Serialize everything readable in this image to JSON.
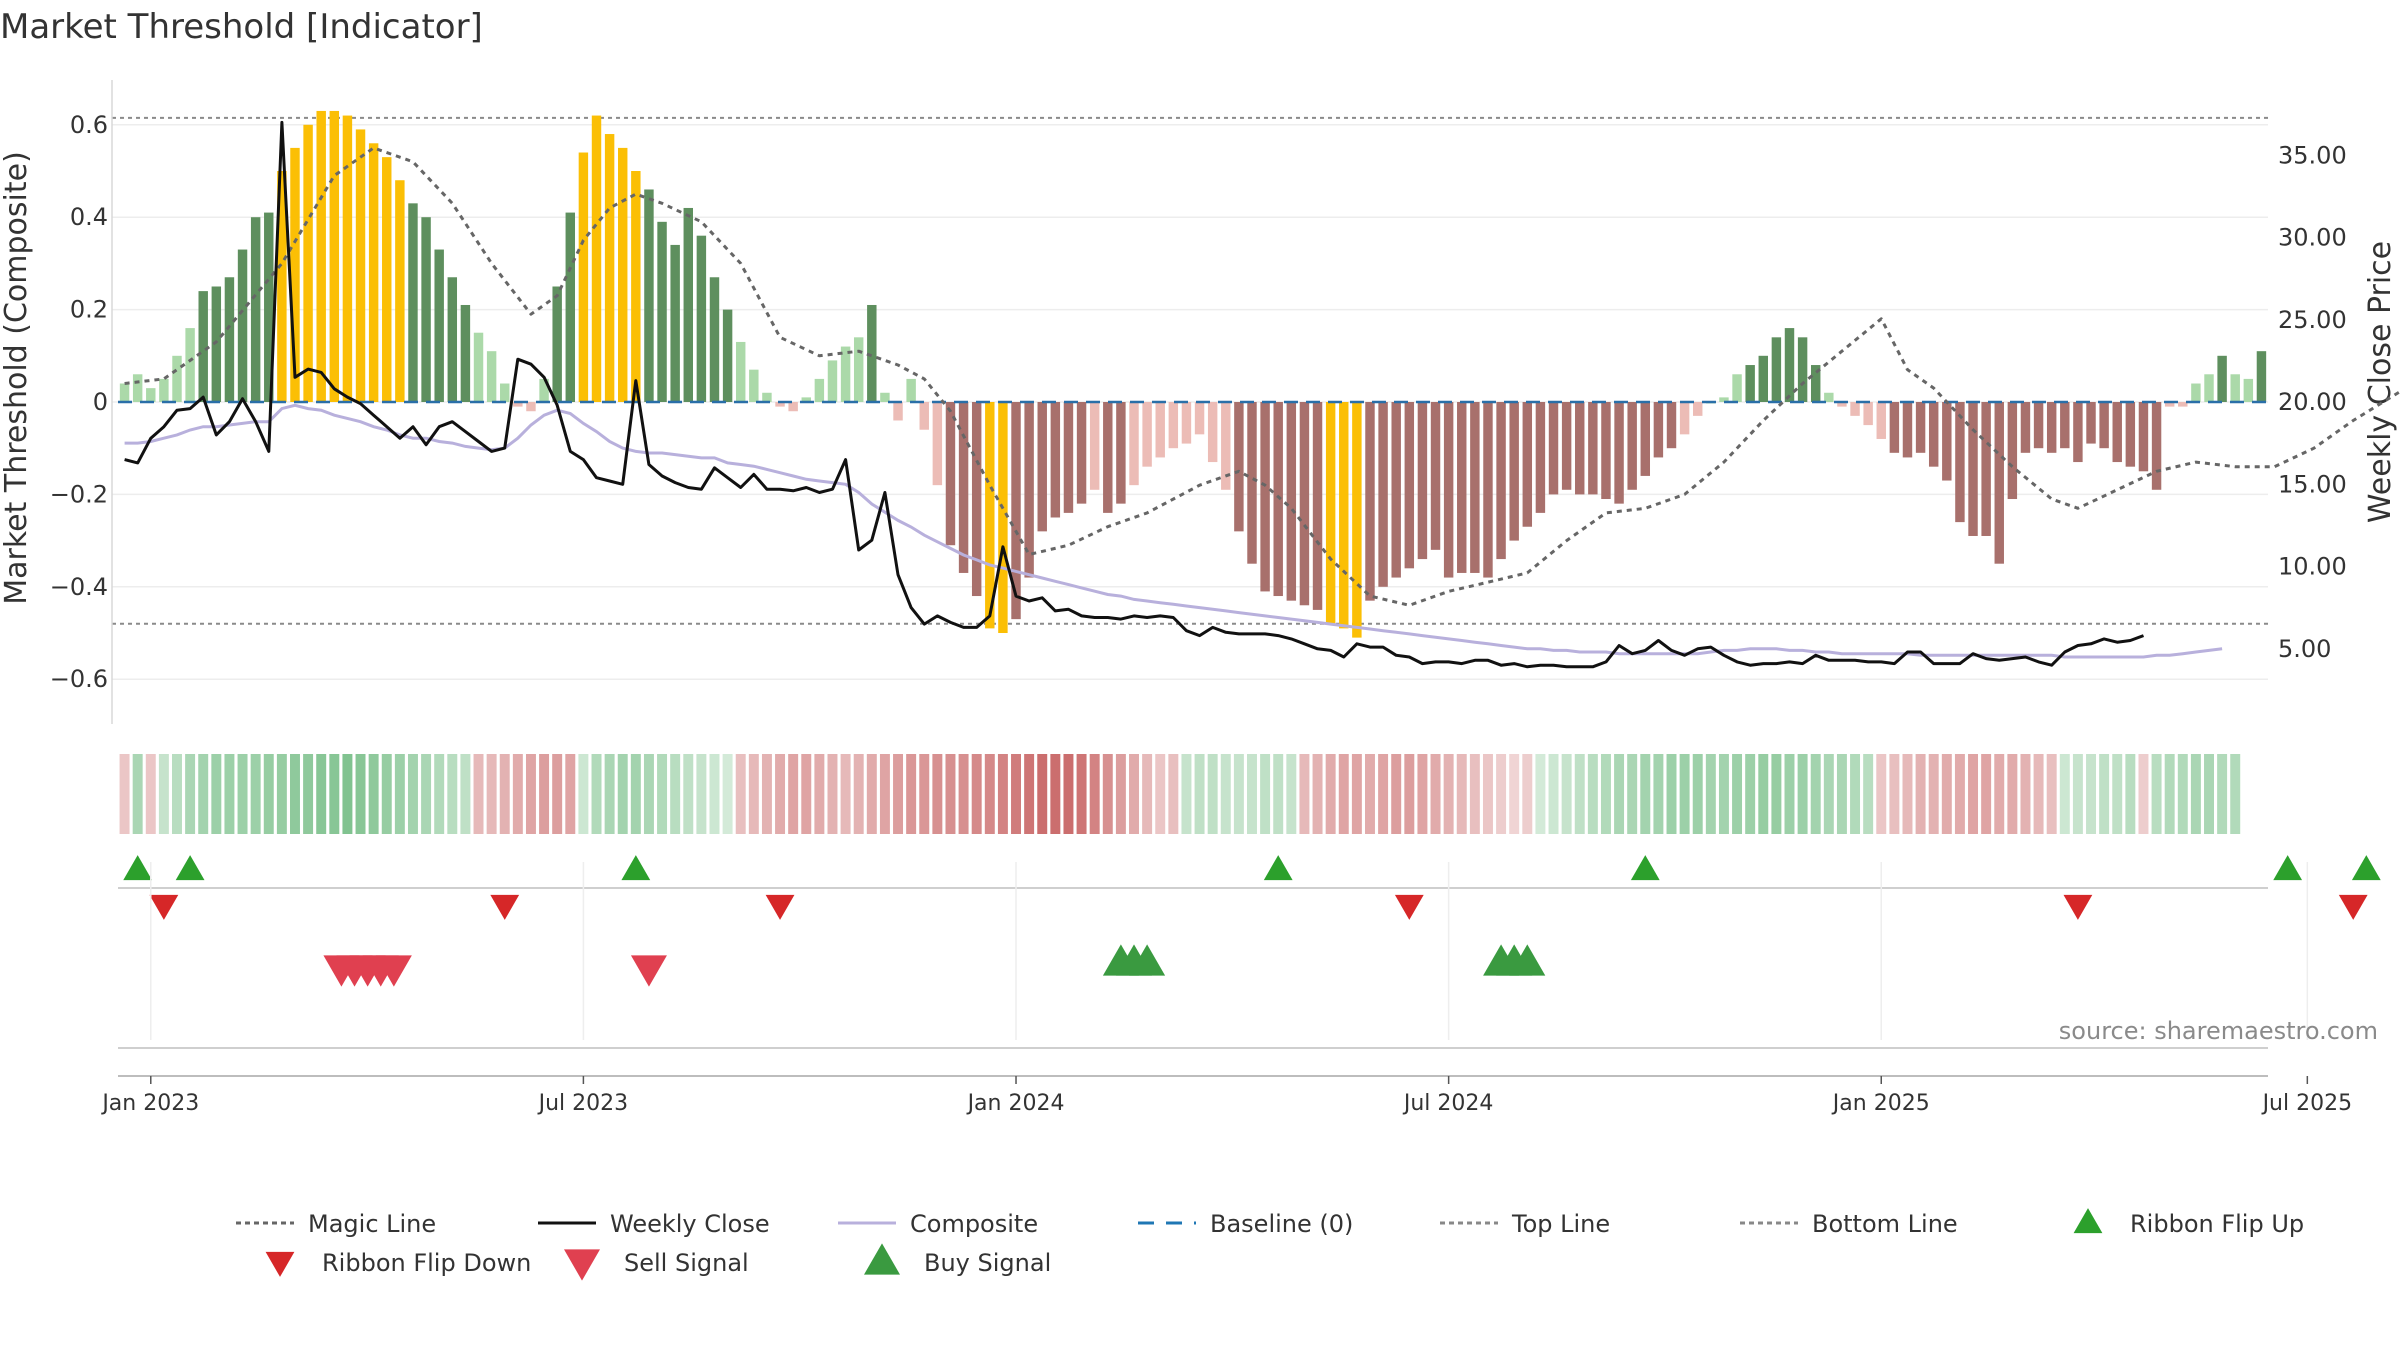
{
  "chart_data": {
    "type": "bar",
    "title": "Market Threshold [Indicator]",
    "ylabel_left": "Market Threshold (Composite)",
    "ylabel_right": "Weekly Close Price",
    "ylim_left": [
      -0.7,
      0.7
    ],
    "ylim_right": [
      0,
      38.2
    ],
    "left_ticks": [
      0.6,
      0.4,
      0.2,
      0,
      -0.2,
      -0.4,
      -0.6
    ],
    "left_tick_labels": [
      "0.6",
      "0.4",
      "0.2",
      "0",
      "−0.2",
      "−0.4",
      "−0.6"
    ],
    "right_ticks": [
      35,
      30,
      25,
      20,
      15,
      10,
      5
    ],
    "right_tick_labels": [
      "35.00",
      "30.00",
      "25.00",
      "20.00",
      "15.00",
      "10.00",
      "5.00"
    ],
    "date_ticks": [
      "Jan 2023",
      "Jul 2023",
      "Jan 2024",
      "Jul 2024",
      "Jan 2025",
      "Jul 2025"
    ],
    "date_tick_weeks": [
      2.5,
      35.5,
      68.5,
      101.5,
      134.5,
      167.0
    ],
    "top_line": 0.615,
    "bottom_line": -0.48,
    "baseline": 0,
    "composite_bars": [
      0.04,
      0.06,
      0.03,
      0.05,
      0.1,
      0.16,
      0.24,
      0.25,
      0.27,
      0.33,
      0.4,
      0.41,
      0.5,
      0.55,
      0.6,
      0.63,
      0.63,
      0.62,
      0.59,
      0.56,
      0.53,
      0.48,
      0.43,
      0.4,
      0.33,
      0.27,
      0.21,
      0.15,
      0.11,
      0.04,
      -0.01,
      -0.02,
      0.05,
      0.25,
      0.41,
      0.54,
      0.62,
      0.58,
      0.55,
      0.5,
      0.46,
      0.39,
      0.34,
      0.42,
      0.36,
      0.27,
      0.2,
      0.13,
      0.07,
      0.02,
      -0.01,
      -0.02,
      0.01,
      0.05,
      0.09,
      0.12,
      0.14,
      0.21,
      0.02,
      -0.04,
      0.05,
      -0.06,
      -0.18,
      -0.31,
      -0.37,
      -0.42,
      -0.49,
      -0.5,
      -0.47,
      -0.38,
      -0.28,
      -0.25,
      -0.24,
      -0.22,
      -0.19,
      -0.24,
      -0.22,
      -0.18,
      -0.14,
      -0.12,
      -0.1,
      -0.09,
      -0.07,
      -0.13,
      -0.19,
      -0.28,
      -0.35,
      -0.41,
      -0.42,
      -0.43,
      -0.44,
      -0.45,
      -0.48,
      -0.49,
      -0.51,
      -0.43,
      -0.4,
      -0.38,
      -0.36,
      -0.34,
      -0.32,
      -0.38,
      -0.37,
      -0.37,
      -0.38,
      -0.34,
      -0.3,
      -0.27,
      -0.24,
      -0.2,
      -0.19,
      -0.2,
      -0.2,
      -0.21,
      -0.22,
      -0.19,
      -0.16,
      -0.12,
      -0.1,
      -0.07,
      -0.03,
      0,
      0.01,
      0.06,
      0.08,
      0.1,
      0.14,
      0.16,
      0.14,
      0.08,
      0.02,
      -0.01,
      -0.03,
      -0.05,
      -0.08,
      -0.11,
      -0.12,
      -0.11,
      -0.14,
      -0.17,
      -0.26,
      -0.29,
      -0.29,
      -0.35,
      -0.21,
      -0.11,
      -0.1,
      -0.11,
      -0.1,
      -0.13,
      -0.09,
      -0.1,
      -0.13,
      -0.14,
      -0.15,
      -0.19,
      -0.01,
      -0.01,
      0.04,
      0.06,
      0.1,
      0.06,
      0.05,
      0.11
    ],
    "bar_colors": {
      "strong_green": "#5e8f5e",
      "light_green": "#abd9a9",
      "strong_red": "#a8706c",
      "light_red": "#ecbcb6",
      "gold": "#fbbf05"
    },
    "weekly_close": [
      16.5,
      16.3,
      17.8,
      18.5,
      19.5,
      19.6,
      20.3,
      18,
      18.8,
      20.2,
      18.8,
      17,
      37,
      21.5,
      22,
      21.8,
      20.8,
      20.3,
      19.9,
      19.2,
      18.5,
      17.8,
      18.5,
      17.4,
      18.5,
      18.8,
      18.2,
      17.6,
      17,
      17.2,
      22.6,
      22.3,
      21.5,
      19.8,
      17,
      16.5,
      15.4,
      15.2,
      15,
      21.3,
      16.2,
      15.5,
      15.1,
      14.8,
      14.7,
      16,
      15.4,
      14.8,
      15.6,
      14.7,
      14.7,
      14.6,
      14.8,
      14.5,
      14.7,
      16.5,
      11,
      11.6,
      14.5,
      9.5,
      7.5,
      6.5,
      7,
      6.6,
      6.3,
      6.3,
      7,
      11.2,
      8.2,
      7.9,
      8.1,
      7.3,
      7.4,
      7,
      6.9,
      6.9,
      6.8,
      7,
      6.9,
      7,
      6.9,
      6.1,
      5.8,
      6.3,
      6,
      5.9,
      5.9,
      5.9,
      5.8,
      5.6,
      5.3,
      5,
      4.9,
      4.5,
      5.3,
      5.1,
      5.1,
      4.6,
      4.5,
      4.1,
      4.2,
      4.2,
      4.1,
      4.3,
      4.3,
      4,
      4.1,
      3.9,
      4,
      4,
      3.9,
      3.9,
      3.9,
      4.2,
      5.2,
      4.7,
      4.9,
      5.5,
      4.9,
      4.6,
      5,
      5.1,
      4.6,
      4.2,
      4,
      4.1,
      4.1,
      4.2,
      4.1,
      4.6,
      4.3,
      4.3,
      4.3,
      4.2,
      4.2,
      4.1,
      4.8,
      4.8,
      4.1,
      4.1,
      4.1,
      4.7,
      4.4,
      4.3,
      4.4,
      4.5,
      4.2,
      4,
      4.8,
      5.2,
      5.3,
      5.6,
      5.4,
      5.5,
      5.8
    ],
    "composite_line_price": [
      17.5,
      17.5,
      17.6,
      17.8,
      18,
      18.3,
      18.5,
      18.5,
      18.6,
      18.7,
      18.8,
      18.8,
      19.6,
      19.8,
      19.6,
      19.5,
      19.2,
      19,
      18.8,
      18.5,
      18.3,
      18,
      17.8,
      17.8,
      17.6,
      17.5,
      17.3,
      17.2,
      17.1,
      17.2,
      17.8,
      18.6,
      19.2,
      19.5,
      19.3,
      18.7,
      18.2,
      17.6,
      17.2,
      17,
      16.9,
      16.9,
      16.8,
      16.7,
      16.6,
      16.6,
      16.3,
      16.2,
      16.1,
      15.9,
      15.7,
      15.5,
      15.3,
      15.2,
      15.1,
      15,
      14.5,
      13.8,
      13.3,
      12.8,
      12.4,
      11.9,
      11.5,
      11.1,
      10.7,
      10.4,
      10.1,
      9.9,
      9.7,
      9.5,
      9.3,
      9.1,
      8.9,
      8.7,
      8.5,
      8.3,
      8.2,
      8,
      7.9,
      7.8,
      7.7,
      7.6,
      7.5,
      7.4,
      7.3,
      7.2,
      7.1,
      7,
      6.9,
      6.8,
      6.7,
      6.6,
      6.5,
      6.4,
      6.3,
      6.2,
      6.1,
      6,
      5.9,
      5.8,
      5.7,
      5.6,
      5.5,
      5.4,
      5.3,
      5.2,
      5.1,
      5,
      5,
      4.9,
      4.9,
      4.8,
      4.8,
      4.8,
      4.7,
      4.7,
      4.7,
      4.7,
      4.7,
      4.7,
      4.7,
      4.8,
      4.9,
      4.9,
      5,
      5,
      5,
      4.9,
      4.9,
      4.8,
      4.8,
      4.7,
      4.7,
      4.7,
      4.7,
      4.7,
      4.7,
      4.6,
      4.6,
      4.6,
      4.6,
      4.6,
      4.6,
      4.6,
      4.6,
      4.6,
      4.6,
      4.6,
      4.5,
      4.5,
      4.5,
      4.5,
      4.5,
      4.5,
      4.5,
      4.6,
      4.6,
      4.7,
      4.8,
      4.9,
      5
    ],
    "magic_line": [
      0.04,
      0.05,
      0.05,
      0.06,
      0.1,
      0.14,
      0.2,
      0.24,
      0.3,
      0.38,
      0.46,
      0.52,
      0.54,
      0.54,
      0.53,
      0.51,
      0.48,
      0.44,
      0.39,
      0.34,
      0.28,
      0.23,
      0.2,
      0.2,
      0.24,
      0.32,
      0.4,
      0.45,
      0.46,
      0.45,
      0.43,
      0.4,
      0.35,
      0.29,
      0.23,
      0.18,
      0.13,
      0.11,
      0.1,
      0.12,
      0.15,
      0.13,
      0.09,
      0.08,
      0.07,
      0.04,
      0.01,
      -0.04,
      -0.1,
      -0.16,
      -0.22,
      -0.28,
      -0.32,
      -0.33,
      -0.32,
      -0.29,
      -0.26,
      -0.24,
      -0.21,
      -0.19,
      -0.17,
      -0.15,
      -0.14,
      -0.12,
      -0.1,
      -0.09,
      -0.08,
      -0.06,
      -0.04,
      -0.02,
      0.04,
      0.09,
      0.13,
      0.16,
      0.18,
      0.19,
      0.17,
      0.13,
      0.08,
      0.01,
      -0.06,
      -0.12,
      -0.18,
      -0.23,
      -0.27,
      -0.29,
      -0.29,
      -0.27,
      -0.24,
      -0.21,
      -0.17,
      -0.14,
      -0.12,
      -0.11,
      -0.11,
      -0.12,
      -0.14,
      -0.17,
      -0.2,
      -0.24,
      -0.28,
      -0.31,
      -0.33,
      -0.34,
      -0.33,
      -0.31,
      -0.3,
      -0.28,
      -0.26,
      -0.25,
      -0.24,
      -0.23,
      -0.22,
      -0.2,
      -0.17,
      -0.14,
      -0.1,
      -0.06,
      -0.02,
      0.02,
      0.05
    ],
    "magic_line_points": [
      [
        0,
        0.04
      ],
      [
        3,
        0.05
      ],
      [
        7,
        0.13
      ],
      [
        12,
        0.3
      ],
      [
        16,
        0.49
      ],
      [
        19,
        0.55
      ],
      [
        22,
        0.52
      ],
      [
        25,
        0.43
      ],
      [
        28,
        0.3
      ],
      [
        31,
        0.19
      ],
      [
        33,
        0.23
      ],
      [
        35,
        0.35
      ],
      [
        37,
        0.42
      ],
      [
        39,
        0.45
      ],
      [
        41,
        0.43
      ],
      [
        44,
        0.39
      ],
      [
        47,
        0.3
      ],
      [
        50,
        0.14
      ],
      [
        53,
        0.1
      ],
      [
        56,
        0.11
      ],
      [
        59,
        0.08
      ],
      [
        61,
        0.05
      ],
      [
        63,
        -0.02
      ],
      [
        66,
        -0.18
      ],
      [
        69,
        -0.33
      ],
      [
        72,
        -0.31
      ],
      [
        75,
        -0.27
      ],
      [
        78,
        -0.24
      ],
      [
        82,
        -0.18
      ],
      [
        85,
        -0.15
      ],
      [
        87,
        -0.18
      ],
      [
        89,
        -0.23
      ],
      [
        92,
        -0.34
      ],
      [
        95,
        -0.42
      ],
      [
        98,
        -0.44
      ],
      [
        101,
        -0.41
      ],
      [
        104,
        -0.39
      ],
      [
        107,
        -0.37
      ],
      [
        110,
        -0.3
      ],
      [
        113,
        -0.24
      ],
      [
        116,
        -0.23
      ],
      [
        119,
        -0.2
      ],
      [
        122,
        -0.13
      ],
      [
        125,
        -0.04
      ],
      [
        128,
        0.04
      ],
      [
        131,
        0.11
      ],
      [
        134,
        0.18
      ],
      [
        136,
        0.07
      ],
      [
        138,
        0.03
      ],
      [
        141,
        -0.06
      ],
      [
        144,
        -0.14
      ],
      [
        147,
        -0.21
      ],
      [
        149,
        -0.23
      ],
      [
        152,
        -0.19
      ],
      [
        155,
        -0.15
      ],
      [
        158,
        -0.13
      ],
      [
        161,
        -0.14
      ],
      [
        164,
        -0.14
      ],
      [
        167,
        -0.1
      ],
      [
        170,
        -0.04
      ],
      [
        174,
        0.03
      ]
    ],
    "ribbon_intensity": [
      -0.2,
      0.4,
      -0.2,
      0.2,
      0.3,
      0.4,
      0.45,
      0.5,
      0.5,
      0.5,
      0.5,
      0.55,
      0.55,
      0.6,
      0.6,
      0.65,
      0.65,
      0.7,
      0.65,
      0.6,
      0.55,
      0.5,
      0.45,
      0.4,
      0.35,
      0.3,
      0.25,
      -0.3,
      -0.3,
      -0.35,
      -0.4,
      -0.45,
      -0.5,
      -0.5,
      -0.45,
      0.15,
      0.35,
      0.4,
      0.45,
      0.45,
      0.4,
      0.35,
      0.3,
      0.25,
      0.2,
      0.15,
      0.1,
      -0.25,
      -0.3,
      -0.35,
      -0.4,
      -0.45,
      -0.45,
      -0.4,
      -0.35,
      -0.3,
      -0.35,
      -0.4,
      -0.45,
      -0.5,
      -0.55,
      -0.55,
      -0.6,
      -0.6,
      -0.6,
      -0.65,
      -0.65,
      -0.7,
      -0.75,
      -0.8,
      -0.85,
      -0.85,
      -0.85,
      -0.8,
      -0.7,
      -0.6,
      -0.5,
      -0.4,
      -0.3,
      -0.2,
      -0.25,
      0.2,
      0.25,
      0.25,
      0.2,
      0.2,
      0.2,
      0.25,
      0.25,
      0.2,
      -0.3,
      -0.35,
      -0.4,
      -0.45,
      -0.45,
      -0.4,
      -0.45,
      -0.5,
      -0.5,
      -0.45,
      -0.4,
      -0.35,
      -0.3,
      -0.25,
      -0.2,
      -0.15,
      -0.1,
      -0.15,
      0.1,
      0.15,
      0.2,
      0.25,
      0.3,
      0.35,
      0.4,
      0.4,
      0.45,
      0.45,
      0.5,
      0.5,
      0.5,
      0.45,
      0.45,
      0.5,
      0.5,
      0.55,
      0.55,
      0.5,
      0.5,
      0.45,
      0.4,
      0.4,
      0.35,
      0.3,
      -0.2,
      -0.25,
      -0.3,
      -0.35,
      -0.35,
      -0.4,
      -0.4,
      -0.45,
      -0.45,
      -0.4,
      -0.4,
      -0.35,
      -0.3,
      -0.25,
      0.15,
      0.2,
      0.2,
      0.25,
      0.25,
      0.3,
      -0.15,
      0.3,
      0.35,
      0.35,
      0.4,
      0.4,
      0.35,
      0.35
    ],
    "ribbon_flip_up_weeks": [
      1,
      5,
      39,
      88,
      116,
      165,
      171
    ],
    "ribbon_flip_down_weeks": [
      3,
      29,
      50,
      98,
      149,
      170
    ],
    "sell_signal_weeks": [
      17,
      18,
      19,
      20,
      21,
      40
    ],
    "buy_signal_weeks": [
      76,
      77,
      78,
      105,
      106,
      107
    ],
    "legend": [
      {
        "label": "Magic Line",
        "kind": "dotted",
        "color": "#666666"
      },
      {
        "label": "Weekly Close",
        "kind": "solid",
        "color": "#111111"
      },
      {
        "label": "Composite",
        "kind": "solid",
        "color": "#b8b0dc"
      },
      {
        "label": "Baseline (0)",
        "kind": "dashed",
        "color": "#1f77b4"
      },
      {
        "label": "Top Line",
        "kind": "dotted",
        "color": "#888888"
      },
      {
        "label": "Bottom Line",
        "kind": "dotted",
        "color": "#888888"
      },
      {
        "label": "Ribbon Flip Up",
        "kind": "tri-up",
        "color": "#2ca02c"
      },
      {
        "label": "Ribbon Flip Down",
        "kind": "tri-down",
        "color": "#d62728"
      },
      {
        "label": "Sell Signal",
        "kind": "tri-down",
        "color": "#e04050"
      },
      {
        "label": "Buy Signal",
        "kind": "tri-up",
        "color": "#3a9a40"
      }
    ],
    "source": "source: sharemaestro.com"
  }
}
